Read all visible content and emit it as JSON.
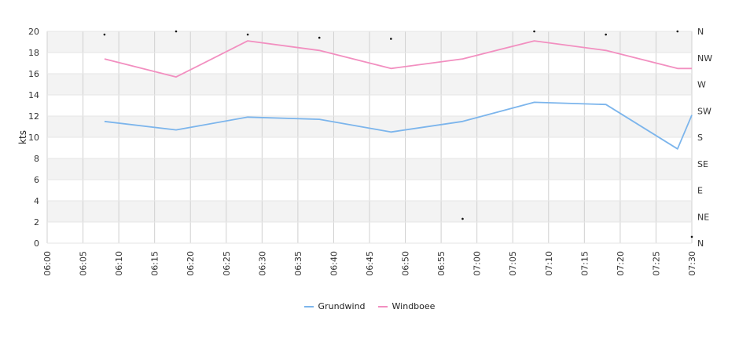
{
  "chart_data": {
    "type": "line",
    "ylabel": "kts",
    "ylim": [
      0,
      20
    ],
    "y_ticks": [
      "0",
      "2",
      "4",
      "6",
      "8",
      "10",
      "12",
      "14",
      "16",
      "18",
      "20"
    ],
    "y2_ticks": [
      "N",
      "NE",
      "E",
      "SE",
      "S",
      "SW",
      "W",
      "NW",
      "N"
    ],
    "x_ticks": [
      "06:00",
      "06:05",
      "06:10",
      "06:15",
      "06:20",
      "06:25",
      "06:30",
      "06:35",
      "06:40",
      "06:45",
      "06:50",
      "06:55",
      "07:00",
      "07:05",
      "07:10",
      "07:15",
      "07:20",
      "07:25",
      "07:30"
    ],
    "x_range": [
      "06:00",
      "07:30"
    ],
    "grid": true,
    "legend_position": "bottom-center",
    "series": [
      {
        "name": "Grundwind",
        "color": "#7cb5ec",
        "x": [
          "06:08",
          "06:18",
          "06:28",
          "06:38",
          "06:48",
          "06:58",
          "07:08",
          "07:18",
          "07:28",
          "07:30"
        ],
        "values": [
          11.5,
          10.7,
          11.9,
          11.7,
          10.5,
          11.5,
          13.3,
          13.1,
          8.9,
          12.1
        ]
      },
      {
        "name": "Windboee",
        "color": "#f28fc0",
        "x": [
          "06:08",
          "06:18",
          "06:28",
          "06:38",
          "06:48",
          "06:58",
          "07:08",
          "07:18",
          "07:28",
          "07:30"
        ],
        "values": [
          17.4,
          15.7,
          19.1,
          18.2,
          16.5,
          17.4,
          19.1,
          18.2,
          16.5,
          16.5
        ]
      }
    ],
    "direction_points": {
      "x": [
        "06:08",
        "06:18",
        "06:28",
        "06:38",
        "06:48",
        "06:58",
        "07:08",
        "07:18",
        "07:28",
        "07:30"
      ],
      "values": [
        19.7,
        20.0,
        19.7,
        19.4,
        19.3,
        2.3,
        20.0,
        19.7,
        20.0,
        0.6
      ]
    }
  }
}
